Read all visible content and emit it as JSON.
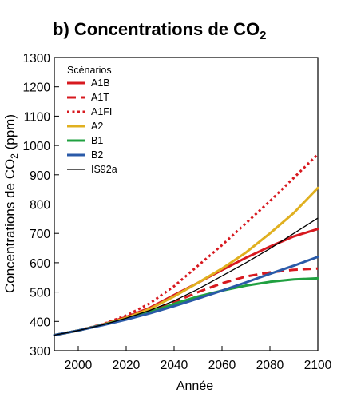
{
  "chart_data": {
    "type": "line",
    "title": "b) Concentrations de CO",
    "title_sub": "2",
    "ylabel": "Concentrations  de CO",
    "ylabel_sub": "2",
    "ylabel_suffix": " (ppm)",
    "xlabel": "Année",
    "xlim": [
      1990,
      2100
    ],
    "ylim": [
      300,
      1300
    ],
    "xticks": [
      2000,
      2020,
      2040,
      2060,
      2080,
      2100
    ],
    "yticks": [
      300,
      400,
      500,
      600,
      700,
      800,
      900,
      1000,
      1100,
      1200,
      1300
    ],
    "grid": false,
    "legend": {
      "title": "Scénarios",
      "position": "top-left"
    },
    "series": [
      {
        "name": "A1B",
        "color": "#d7191f",
        "style": "solid",
        "width": 3,
        "x": [
          1990,
          2000,
          2010,
          2020,
          2030,
          2040,
          2050,
          2060,
          2070,
          2080,
          2090,
          2100
        ],
        "y": [
          353,
          369,
          389,
          415,
          447,
          490,
          532,
          575,
          617,
          655,
          690,
          715
        ]
      },
      {
        "name": "A1T",
        "color": "#d7191f",
        "style": "dashed",
        "width": 3,
        "x": [
          1990,
          2000,
          2010,
          2020,
          2030,
          2040,
          2050,
          2060,
          2070,
          2080,
          2090,
          2100
        ],
        "y": [
          353,
          369,
          388,
          411,
          437,
          465,
          500,
          530,
          553,
          567,
          576,
          580
        ]
      },
      {
        "name": "A1FI",
        "color": "#d7191f",
        "style": "dotted",
        "width": 3,
        "x": [
          1990,
          2000,
          2010,
          2020,
          2030,
          2040,
          2050,
          2060,
          2070,
          2080,
          2090,
          2100
        ],
        "y": [
          353,
          369,
          390,
          420,
          462,
          520,
          590,
          660,
          735,
          810,
          890,
          970
        ]
      },
      {
        "name": "A2",
        "color": "#e0b020",
        "style": "solid",
        "width": 3,
        "x": [
          1990,
          2000,
          2010,
          2020,
          2030,
          2040,
          2050,
          2060,
          2070,
          2080,
          2090,
          2100
        ],
        "y": [
          353,
          369,
          388,
          412,
          443,
          485,
          532,
          580,
          635,
          700,
          770,
          855
        ]
      },
      {
        "name": "B1",
        "color": "#20a040",
        "style": "solid",
        "width": 3,
        "x": [
          1990,
          2000,
          2010,
          2020,
          2030,
          2040,
          2050,
          2060,
          2070,
          2080,
          2090,
          2100
        ],
        "y": [
          353,
          369,
          388,
          408,
          432,
          460,
          485,
          505,
          522,
          535,
          543,
          547
        ]
      },
      {
        "name": "B2",
        "color": "#2a5aa8",
        "style": "solid",
        "width": 3,
        "x": [
          1990,
          2000,
          2010,
          2020,
          2030,
          2040,
          2050,
          2060,
          2070,
          2080,
          2090,
          2100
        ],
        "y": [
          353,
          369,
          387,
          406,
          428,
          452,
          478,
          505,
          533,
          562,
          590,
          620
        ]
      },
      {
        "name": "IS92a",
        "color": "#000000",
        "style": "solid",
        "width": 1.3,
        "x": [
          1990,
          2000,
          2010,
          2020,
          2030,
          2040,
          2050,
          2060,
          2070,
          2080,
          2090,
          2100
        ],
        "y": [
          353,
          369,
          388,
          411,
          438,
          470,
          510,
          555,
          600,
          648,
          700,
          752
        ]
      }
    ]
  }
}
